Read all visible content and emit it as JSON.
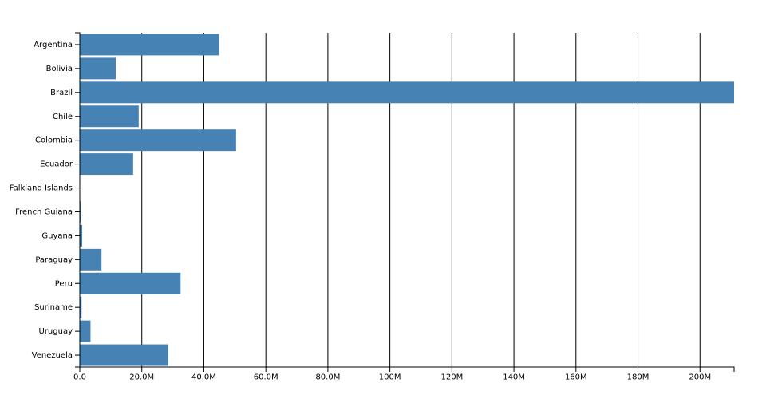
{
  "chart_data": {
    "type": "bar",
    "orientation": "horizontal",
    "color": "steelblue",
    "grid": true,
    "categories": [
      "Argentina",
      "Bolivia",
      "Brazil",
      "Chile",
      "Colombia",
      "Ecuador",
      "Falkland Islands",
      "French Guiana",
      "Guyana",
      "Paraguay",
      "Peru",
      "Suriname",
      "Uruguay",
      "Venezuela"
    ],
    "values": [
      44900000,
      11600000,
      211000000,
      19000000,
      50400000,
      17200000,
      3000,
      290000,
      780000,
      7000000,
      32500000,
      580000,
      3460000,
      28500000
    ],
    "xlim": [
      0,
      211000000
    ],
    "xticks": [
      {
        "value": 0,
        "label": "0.0"
      },
      {
        "value": 20000000,
        "label": "20.0M"
      },
      {
        "value": 40000000,
        "label": "40.0M"
      },
      {
        "value": 60000000,
        "label": "60.0M"
      },
      {
        "value": 80000000,
        "label": "80.0M"
      },
      {
        "value": 100000000,
        "label": "100M"
      },
      {
        "value": 120000000,
        "label": "120M"
      },
      {
        "value": 140000000,
        "label": "140M"
      },
      {
        "value": 160000000,
        "label": "160M"
      },
      {
        "value": 180000000,
        "label": "180M"
      },
      {
        "value": 200000000,
        "label": "200M"
      }
    ]
  }
}
